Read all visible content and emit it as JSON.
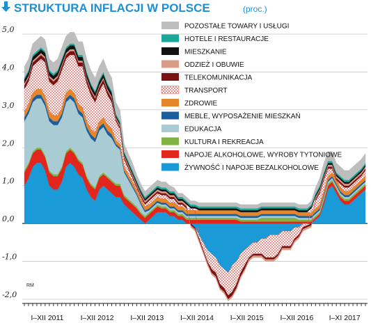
{
  "chart_data": {
    "type": "area",
    "title": "STRUKTURA INFLACJI W POLSCE",
    "subtitle": "(proc.)",
    "credit": "RM",
    "ylim": [
      -2.0,
      5.0
    ],
    "y_ticks": [
      5.0,
      4.0,
      3.0,
      2.0,
      1.0,
      0.0,
      -1.0,
      -2.0
    ],
    "y_tick_labels": [
      "5,0",
      "4,0",
      "3,0",
      "2,0",
      "1,0",
      "0,0",
      "-1,0",
      "-2,0"
    ],
    "x_tick_labels": [
      "I–XII 2011",
      "I–XII 2012",
      "I–XII 2013",
      "I–XII 2014",
      "I–XII 2015",
      "I–XII 2016",
      "I–XI 2017"
    ],
    "months": 83,
    "grid": true,
    "legend_position": "top-right",
    "series": [
      {
        "name": "ŻYWNOŚĆ I NAPOJE BEZALKOHOLOWE",
        "color": "#1a9ad6",
        "values": [
          1.0,
          1.2,
          1.5,
          1.6,
          1.6,
          1.4,
          1.0,
          0.9,
          0.9,
          1.1,
          1.5,
          1.6,
          1.5,
          1.3,
          1.2,
          0.9,
          0.7,
          0.6,
          0.9,
          1.0,
          0.9,
          0.8,
          0.7,
          0.7,
          0.5,
          0.4,
          0.3,
          0.2,
          0.1,
          0.0,
          0.1,
          0.2,
          0.3,
          0.3,
          0.3,
          0.2,
          0.2,
          0.1,
          0.1,
          0.0,
          0.0,
          -0.1,
          -0.3,
          -0.5,
          -0.7,
          -0.8,
          -0.9,
          -1.1,
          -1.2,
          -1.3,
          -1.1,
          -1.0,
          -0.8,
          -0.7,
          -0.6,
          -0.5,
          -0.5,
          -0.4,
          -0.4,
          -0.3,
          -0.3,
          -0.3,
          -0.2,
          -0.2,
          -0.2,
          -0.1,
          -0.1,
          0.0,
          0.0,
          0.0,
          0.1,
          0.2,
          0.5,
          0.9,
          1.0,
          0.8,
          0.6,
          0.5,
          0.5,
          0.6,
          0.7,
          0.8,
          0.9
        ]
      },
      {
        "name": "NAPOJE ALKOHOLOWE, WYROBY TYTONIOWE",
        "color": "#e3261d",
        "values": [
          0.35,
          0.35,
          0.35,
          0.35,
          0.35,
          0.35,
          0.35,
          0.35,
          0.35,
          0.35,
          0.35,
          0.35,
          0.35,
          0.35,
          0.35,
          0.3,
          0.3,
          0.3,
          0.3,
          0.3,
          0.3,
          0.3,
          0.3,
          0.3,
          0.2,
          0.2,
          0.2,
          0.2,
          0.15,
          0.15,
          0.15,
          0.15,
          0.15,
          0.1,
          0.1,
          0.1,
          0.1,
          0.1,
          0.1,
          0.1,
          0.1,
          0.1,
          0.1,
          0.1,
          0.1,
          0.1,
          0.1,
          0.1,
          0.1,
          0.1,
          0.1,
          0.1,
          0.05,
          0.05,
          0.05,
          0.05,
          0.05,
          0.05,
          0.05,
          0.05,
          0.05,
          0.05,
          0.05,
          0.05,
          0.05,
          0.05,
          0.05,
          0.05,
          0.05,
          0.05,
          0.05,
          0.05,
          0.1,
          0.1,
          0.1,
          0.1,
          0.1,
          0.1,
          0.1,
          0.1,
          0.1,
          0.1,
          0.1
        ]
      },
      {
        "name": "KULTURA I REKREACJA",
        "color": "#7fb241",
        "values": [
          0.05,
          0.05,
          0.05,
          0.05,
          0.05,
          0.05,
          0.05,
          0.05,
          0.05,
          0.05,
          0.05,
          0.05,
          0.05,
          0.05,
          0.05,
          0.05,
          0.05,
          0.05,
          0.05,
          0.05,
          0.05,
          0.05,
          0.05,
          0.05,
          0.05,
          0.05,
          0.05,
          0.05,
          0.05,
          0.05,
          0.05,
          0.05,
          0.05,
          0.05,
          0.05,
          0.05,
          0.05,
          0.05,
          0.05,
          0.05,
          0.05,
          0.05,
          0.05,
          0.05,
          0.05,
          0.05,
          0.05,
          0.05,
          0.05,
          0.05,
          0.05,
          0.05,
          0.05,
          0.05,
          0.05,
          0.05,
          0.05,
          0.1,
          0.1,
          0.1,
          0.1,
          0.1,
          0.1,
          0.1,
          0.1,
          0.1,
          0.05,
          0.05,
          0.05,
          0.05,
          0.05,
          0.05,
          0.05,
          0.05,
          0.05,
          0.05,
          0.05,
          0.05,
          0.05,
          0.05,
          0.05,
          0.05,
          0.05
        ]
      },
      {
        "name": "EDUKACJA",
        "color": "#a9cbd3",
        "values": [
          1.3,
          1.3,
          1.3,
          1.3,
          1.3,
          1.3,
          1.3,
          1.3,
          1.3,
          1.3,
          1.3,
          1.3,
          1.3,
          1.2,
          1.2,
          1.2,
          1.2,
          1.2,
          1.2,
          1.2,
          1.1,
          1.1,
          1.0,
          0.9,
          0.6,
          0.5,
          0.4,
          0.3,
          0.2,
          0.1,
          0.05,
          0.05,
          0.05,
          0.05,
          0.05,
          0.05,
          0.05,
          0.05,
          0.05,
          0.05,
          0.05,
          0.05,
          0.05,
          0.05,
          0.05,
          0.05,
          0.05,
          0.05,
          0.05,
          0.05,
          0.05,
          0.05,
          0.05,
          0.05,
          0.05,
          0.05,
          0.05,
          0.05,
          0.05,
          0.05,
          0.05,
          0.05,
          0.05,
          0.05,
          0.05,
          0.05,
          0.05,
          0.05,
          0.05,
          0.05,
          0.05,
          0.05,
          0.05,
          0.05,
          0.05,
          0.05,
          0.05,
          0.05,
          0.05,
          0.05,
          0.05,
          0.05,
          0.05
        ]
      },
      {
        "name": "MEBLE, WYPOSAŻENIE MIESZKAŃ",
        "color": "#1b5e9b",
        "values": [
          0.1,
          0.1,
          0.1,
          0.1,
          0.1,
          0.1,
          0.1,
          0.1,
          0.1,
          0.1,
          0.1,
          0.1,
          0.1,
          0.1,
          0.1,
          0.1,
          0.1,
          0.1,
          0.1,
          0.1,
          0.1,
          0.1,
          0.05,
          0.05,
          0.05,
          0.05,
          0.05,
          0.05,
          0.05,
          0.05,
          0.05,
          0.05,
          0.05,
          0.05,
          0.05,
          0.05,
          0.05,
          0.05,
          0.05,
          0.05,
          0.05,
          0.05,
          0.05,
          0.05,
          0.05,
          0.05,
          0.05,
          0.05,
          0.05,
          0.05,
          0.05,
          0.05,
          0.05,
          0.05,
          0.05,
          0.05,
          0.05,
          0.05,
          0.05,
          0.05,
          0.05,
          0.05,
          0.05,
          0.05,
          0.05,
          0.05,
          0.05,
          0.05,
          0.05,
          0.05,
          0.05,
          0.05,
          0.05,
          0.05,
          0.05,
          0.05,
          0.05,
          0.05,
          0.05,
          0.05,
          0.05,
          0.05,
          0.05
        ]
      },
      {
        "name": "ZDROWIE",
        "color": "#e6862a",
        "values": [
          0.15,
          0.15,
          0.15,
          0.15,
          0.15,
          0.15,
          0.15,
          0.15,
          0.15,
          0.15,
          0.15,
          0.15,
          0.15,
          0.15,
          0.15,
          0.15,
          0.15,
          0.15,
          0.15,
          0.15,
          0.15,
          0.15,
          0.1,
          0.1,
          0.1,
          0.1,
          0.1,
          0.1,
          0.1,
          0.1,
          0.1,
          0.1,
          0.1,
          0.1,
          0.1,
          0.1,
          0.1,
          0.1,
          0.1,
          0.1,
          0.1,
          0.1,
          0.1,
          0.1,
          0.1,
          0.1,
          0.1,
          0.1,
          0.1,
          0.1,
          0.1,
          0.1,
          0.1,
          0.1,
          0.1,
          0.1,
          0.1,
          0.1,
          0.1,
          0.1,
          0.1,
          0.1,
          0.1,
          0.1,
          0.1,
          0.1,
          0.1,
          0.1,
          0.1,
          0.1,
          0.1,
          0.1,
          0.1,
          0.1,
          0.1,
          0.1,
          0.1,
          0.1,
          0.1,
          0.1,
          0.1,
          0.1,
          0.1
        ]
      },
      {
        "name": "TRANSPORT",
        "color": "#d8342c",
        "values": [
          0.6,
          0.6,
          0.7,
          0.7,
          0.8,
          0.9,
          0.8,
          0.8,
          0.9,
          1.0,
          0.9,
          0.9,
          1.0,
          1.0,
          1.1,
          1.0,
          0.9,
          0.8,
          0.8,
          0.9,
          0.8,
          0.7,
          0.5,
          0.4,
          0.2,
          0.15,
          0.1,
          0.05,
          0.05,
          0.05,
          0.1,
          0.1,
          0.1,
          0.1,
          0.1,
          0.1,
          0.1,
          0.05,
          0.05,
          0.05,
          0.05,
          0.05,
          -0.1,
          -0.2,
          -0.3,
          -0.4,
          -0.4,
          -0.5,
          -0.5,
          -0.6,
          -0.7,
          -0.6,
          -0.5,
          -0.4,
          -0.3,
          -0.3,
          -0.3,
          -0.4,
          -0.5,
          -0.6,
          -0.6,
          -0.5,
          -0.4,
          -0.4,
          -0.4,
          -0.3,
          -0.2,
          -0.1,
          -0.05,
          0.1,
          0.2,
          0.3,
          0.3,
          0.2,
          0.1,
          0.0,
          0.1,
          0.1,
          0.1,
          0.1,
          0.1,
          0.1,
          0.15
        ]
      },
      {
        "name": "TELEKOMUNIKACJA",
        "color": "#7a0f14",
        "values": [
          0.1,
          0.1,
          0.1,
          0.1,
          0.1,
          0.1,
          0.1,
          0.1,
          0.1,
          0.1,
          0.1,
          0.1,
          0.1,
          0.1,
          0.1,
          0.1,
          0.1,
          0.1,
          0.1,
          0.1,
          0.1,
          0.1,
          0.05,
          0.05,
          0.05,
          0.05,
          0.05,
          0.05,
          0.05,
          0.05,
          0.05,
          0.05,
          0.05,
          0.05,
          0.05,
          0.05,
          0.05,
          0.05,
          0.05,
          0.05,
          -0.05,
          -0.05,
          -0.05,
          -0.05,
          -0.05,
          -0.1,
          -0.1,
          -0.1,
          -0.1,
          -0.1,
          -0.1,
          -0.1,
          -0.1,
          -0.1,
          -0.05,
          -0.05,
          -0.05,
          -0.05,
          -0.05,
          -0.05,
          -0.05,
          -0.05,
          -0.05,
          -0.05,
          -0.05,
          -0.05,
          -0.05,
          -0.05,
          -0.05,
          -0.05,
          0.05,
          0.05,
          0.05,
          0.05,
          0.05,
          0.05,
          0.05,
          0.05,
          0.05,
          0.05,
          0.05,
          0.05,
          0.05
        ]
      },
      {
        "name": "ODZIEŻ I OBUWIE",
        "color": "#d99b85",
        "values": [
          0.05,
          0.05,
          0.05,
          0.05,
          0.05,
          0.05,
          0.05,
          0.05,
          0.05,
          0.05,
          0.05,
          0.05,
          0.05,
          0.05,
          0.05,
          0.05,
          0.05,
          0.05,
          0.05,
          0.05,
          0.05,
          0.05,
          0.05,
          0.05,
          0.05,
          0.05,
          0.05,
          0.05,
          0.05,
          0.05,
          0.05,
          0.05,
          0.05,
          0.05,
          0.05,
          0.05,
          0.05,
          0.05,
          0.05,
          0.05,
          -0.05,
          -0.05,
          -0.05,
          -0.05,
          -0.05,
          -0.05,
          -0.05,
          -0.05,
          -0.05,
          -0.05,
          -0.05,
          -0.05,
          -0.05,
          -0.05,
          -0.05,
          -0.05,
          -0.05,
          -0.05,
          -0.05,
          -0.05,
          -0.05,
          -0.05,
          -0.05,
          -0.05,
          -0.05,
          -0.05,
          -0.05,
          -0.05,
          -0.05,
          -0.05,
          0.05,
          0.05,
          0.05,
          0.05,
          0.05,
          0.05,
          0.05,
          0.05,
          0.05,
          0.05,
          0.05,
          0.05,
          0.05
        ]
      },
      {
        "name": "MIESZKANIE",
        "color": "#111111",
        "values": [
          0.1,
          0.1,
          0.1,
          0.1,
          0.1,
          0.1,
          0.1,
          0.1,
          0.1,
          0.1,
          0.1,
          0.1,
          0.1,
          0.1,
          0.1,
          0.1,
          0.1,
          0.1,
          0.1,
          0.1,
          0.1,
          0.1,
          0.05,
          0.05,
          0.05,
          0.05,
          0.05,
          0.05,
          0.05,
          0.05,
          0.05,
          0.05,
          0.05,
          0.05,
          0.05,
          0.05,
          0.05,
          0.05,
          0.05,
          0.05,
          0.05,
          0.05,
          0.05,
          0.05,
          0.05,
          0.05,
          0.05,
          0.05,
          0.05,
          0.05,
          0.05,
          0.05,
          0.05,
          0.05,
          0.05,
          0.05,
          0.05,
          0.05,
          0.05,
          0.05,
          0.05,
          0.05,
          0.05,
          0.05,
          0.05,
          0.05,
          0.05,
          0.05,
          0.05,
          0.05,
          0.05,
          0.05,
          0.05,
          0.05,
          0.05,
          0.05,
          0.05,
          0.05,
          0.05,
          0.05,
          0.05,
          0.05,
          0.05
        ]
      },
      {
        "name": "HOTELE I RESTAURACJE",
        "color": "#1aa89a",
        "values": [
          0.05,
          0.05,
          0.05,
          0.05,
          0.05,
          0.05,
          0.05,
          0.05,
          0.05,
          0.05,
          0.05,
          0.05,
          0.05,
          0.05,
          0.05,
          0.05,
          0.05,
          0.05,
          0.05,
          0.05,
          0.05,
          0.05,
          0.05,
          0.05,
          0.05,
          0.05,
          0.05,
          0.05,
          0.05,
          0.05,
          0.05,
          0.05,
          0.05,
          0.05,
          0.05,
          0.05,
          0.05,
          0.05,
          0.05,
          0.05,
          0.05,
          0.05,
          0.05,
          0.05,
          0.05,
          0.05,
          0.05,
          0.05,
          0.05,
          0.05,
          0.05,
          0.05,
          0.05,
          0.05,
          0.05,
          0.05,
          0.05,
          0.05,
          0.05,
          0.05,
          0.05,
          0.05,
          0.05,
          0.05,
          0.05,
          0.05,
          0.05,
          0.05,
          0.05,
          0.05,
          0.05,
          0.05,
          0.05,
          0.05,
          0.05,
          0.05,
          0.05,
          0.05,
          0.05,
          0.05,
          0.05,
          0.05,
          0.05
        ]
      },
      {
        "name": "POZOSTAŁE TOWARY I USŁUGI",
        "color": "#bdbdbd",
        "values": [
          0.3,
          0.3,
          0.3,
          0.3,
          0.3,
          0.3,
          0.3,
          0.3,
          0.3,
          0.3,
          0.3,
          0.3,
          0.3,
          0.35,
          0.35,
          0.35,
          0.35,
          0.35,
          0.35,
          0.35,
          0.35,
          0.35,
          0.3,
          0.3,
          0.2,
          0.2,
          0.2,
          0.15,
          0.15,
          0.15,
          0.15,
          0.15,
          0.15,
          0.15,
          0.15,
          0.15,
          0.1,
          0.1,
          0.1,
          0.1,
          0.1,
          0.1,
          0.1,
          0.1,
          0.1,
          0.1,
          0.1,
          0.1,
          0.1,
          0.1,
          0.1,
          0.1,
          0.1,
          0.1,
          0.1,
          0.1,
          0.1,
          0.1,
          0.1,
          0.1,
          0.1,
          0.1,
          0.1,
          0.1,
          0.1,
          0.1,
          0.1,
          0.1,
          0.1,
          0.1,
          0.15,
          0.2,
          0.25,
          0.25,
          0.25,
          0.25,
          0.25,
          0.25,
          0.25,
          0.25,
          0.25,
          0.25,
          0.25
        ]
      }
    ]
  }
}
